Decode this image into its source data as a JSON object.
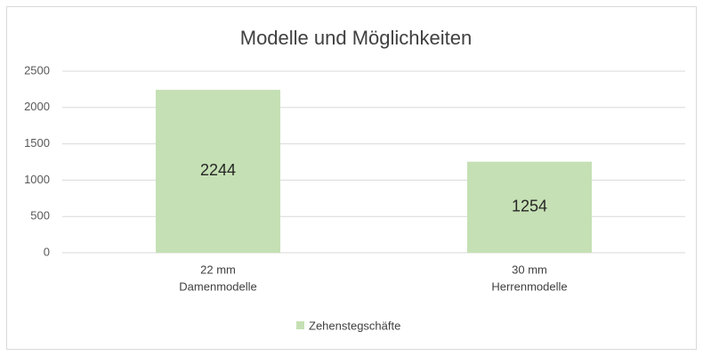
{
  "chart_data": {
    "type": "bar",
    "title": "Modelle und Möglichkeiten",
    "categories": [
      [
        "22 mm",
        "Damenmodelle"
      ],
      [
        "30 mm",
        "Herrenmodelle"
      ]
    ],
    "series": [
      {
        "name": "Zehenstegschäfte",
        "color": "#c5e0b4",
        "values": [
          2244,
          1254
        ]
      }
    ],
    "ylim": [
      0,
      2500
    ],
    "yticks": [
      0,
      500,
      1000,
      1500,
      2000,
      2500
    ],
    "grid": true,
    "data_labels": true,
    "legend": "bottom"
  }
}
